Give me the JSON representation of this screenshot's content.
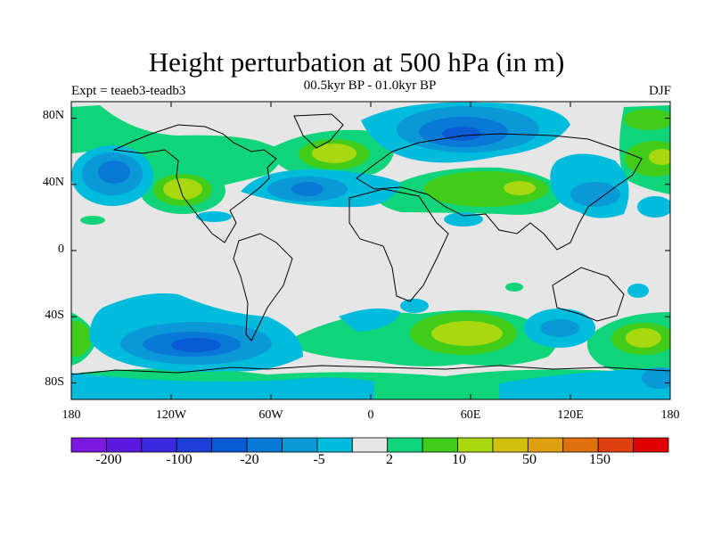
{
  "header": {
    "title": "Height perturbation at 500 hPa (in m)",
    "subtitle": "00.5kyr BP - 01.0kyr BP",
    "left_label": "Expt = teaeb3-teadb3",
    "right_label": "DJF"
  },
  "axes": {
    "lat_ticks": [
      "80N",
      "40N",
      "0",
      "40S",
      "80S"
    ],
    "lon_ticks": [
      "180",
      "120W",
      "60W",
      "0",
      "60E",
      "120E",
      "180"
    ]
  },
  "colorbar": {
    "labels": [
      "-200",
      "-100",
      "-20",
      "-5",
      "2",
      "10",
      "50",
      "150"
    ],
    "colors": [
      "#7a18e0",
      "#5a18e0",
      "#3c28e0",
      "#1e40d8",
      "#0a5ad6",
      "#0a78d6",
      "#0a98d6",
      "#00bcdc",
      "#e6e6e6",
      "#10d47a",
      "#40cc18",
      "#a8d810",
      "#d2c010",
      "#e0a010",
      "#e07010",
      "#e04010",
      "#e00000"
    ]
  },
  "map": {
    "projection": "cylindrical-equidistant",
    "lon_range": [
      -180,
      180
    ],
    "lat_range": [
      -90,
      90
    ],
    "background_color": "#e6e6e6"
  }
}
